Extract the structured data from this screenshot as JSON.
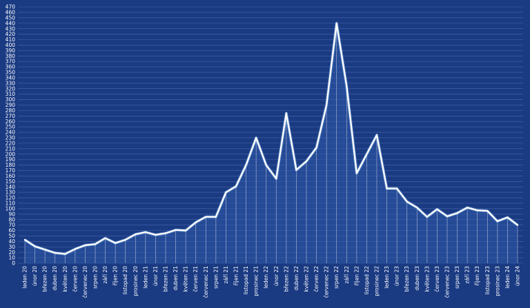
{
  "chart_data": {
    "type": "line",
    "title": "",
    "xlabel": "",
    "ylabel": "",
    "ylim": [
      0,
      470
    ],
    "ytick_step": 10,
    "grid": true,
    "categories": [
      "leden 20",
      "únor 20",
      "březen 20",
      "duben 20",
      "květen 20",
      "červen 20",
      "červenec 20",
      "srpen 20",
      "září 20",
      "říjen 20",
      "listopad 20",
      "prosinec 20",
      "leden 21",
      "únor 21",
      "březen 21",
      "duben 21",
      "květen 21",
      "červen 21",
      "červenec 21",
      "srpen 21",
      "září 21",
      "říjen 21",
      "listopad 21",
      "prosinec 21",
      "leden 22",
      "únor 22",
      "březen 22",
      "duben 22",
      "květen 22",
      "červen 22",
      "červenec 22",
      "srpen 22",
      "září 22",
      "říjen 22",
      "listopad 22",
      "prosinec 22",
      "leden 23",
      "únor 23",
      "březen 23",
      "duben 23",
      "květen 23",
      "červen 23",
      "červenec 23",
      "srpen 23",
      "září 23",
      "říjen 23",
      "listopad 23",
      "prosinec 23",
      "leden 24",
      "únor 24"
    ],
    "series": [
      {
        "values": [
          43,
          31,
          25,
          19,
          17,
          26,
          33,
          35,
          46,
          37,
          43,
          53,
          57,
          52,
          55,
          61,
          60,
          75,
          85,
          85,
          130,
          141,
          180,
          230,
          180,
          155,
          275,
          171,
          187,
          212,
          290,
          440,
          325,
          165,
          200,
          235,
          137,
          137,
          113,
          102,
          85,
          99,
          86,
          92,
          102,
          97,
          96,
          77,
          84,
          70
        ]
      }
    ]
  },
  "colors": {
    "background": "#1a3a82",
    "line": "#ffffff",
    "grid": "#5d7bbf",
    "text": "#ffffff"
  }
}
